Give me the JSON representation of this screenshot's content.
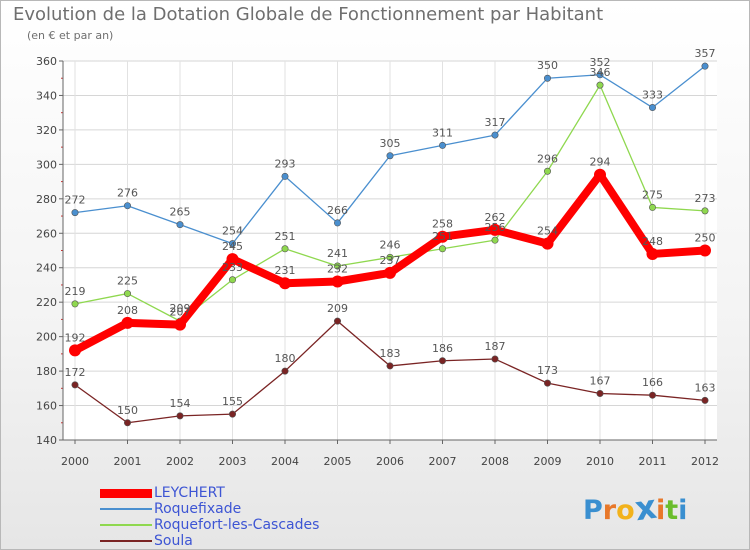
{
  "title": "Evolution de la Dotation Globale de Fonctionnement par Habitant",
  "subtitle": "(en € et par an)",
  "brand": {
    "text": "Proxiti",
    "letters": [
      "P",
      "r",
      "o",
      "x",
      "i",
      "t",
      "i"
    ],
    "colors": [
      "#3a8fd0",
      "#e8782a",
      "#f2b21b",
      "#3a8fd0",
      "#e8782a",
      "#6bbd2c",
      "#3a8fd0"
    ]
  },
  "chart_data": {
    "type": "line",
    "x": [
      2000,
      2001,
      2002,
      2003,
      2004,
      2005,
      2006,
      2007,
      2008,
      2009,
      2010,
      2011,
      2012
    ],
    "ylim": [
      140,
      360
    ],
    "yticks": [
      140,
      160,
      180,
      200,
      220,
      240,
      260,
      280,
      300,
      320,
      340,
      360
    ],
    "grid": true,
    "legend_position": "bottom-left",
    "series": [
      {
        "name": "LEYCHERT",
        "color": "#ff0000",
        "emphasis": true,
        "values": [
          192,
          208,
          207,
          245,
          231,
          232,
          237,
          258,
          262,
          254,
          294,
          248,
          250
        ],
        "labels": [
          "192",
          "208",
          "207",
          "245",
          "231",
          "232",
          "237",
          "258",
          "262",
          "254",
          "294",
          "248",
          "250"
        ]
      },
      {
        "name": "Roquefixade",
        "color": "#4a8fcf",
        "values": [
          272,
          276,
          265,
          254,
          293,
          266,
          305,
          311,
          317,
          350,
          352,
          333,
          357
        ],
        "labels": [
          "272",
          "276",
          "265",
          "254",
          "293",
          "266",
          "305",
          "311",
          "317",
          "350",
          "352",
          "333",
          "357"
        ]
      },
      {
        "name": "Roquefort-les-Cascades",
        "color": "#8fd84f",
        "values": [
          219,
          225,
          209,
          233,
          251,
          241,
          246,
          251,
          256,
          296,
          346,
          275,
          273
        ],
        "labels": [
          "219",
          "225",
          "209",
          "233",
          "251",
          "241",
          "246",
          "251",
          "256",
          "296",
          "346",
          "275",
          "273"
        ]
      },
      {
        "name": "Soula",
        "color": "#7a2424",
        "values": [
          172,
          150,
          154,
          155,
          180,
          209,
          183,
          186,
          187,
          173,
          167,
          166,
          163
        ],
        "labels": [
          "172",
          "150",
          "154",
          "155",
          "180",
          "209",
          "183",
          "186",
          "187",
          "173",
          "167",
          "166",
          "163"
        ]
      }
    ]
  }
}
